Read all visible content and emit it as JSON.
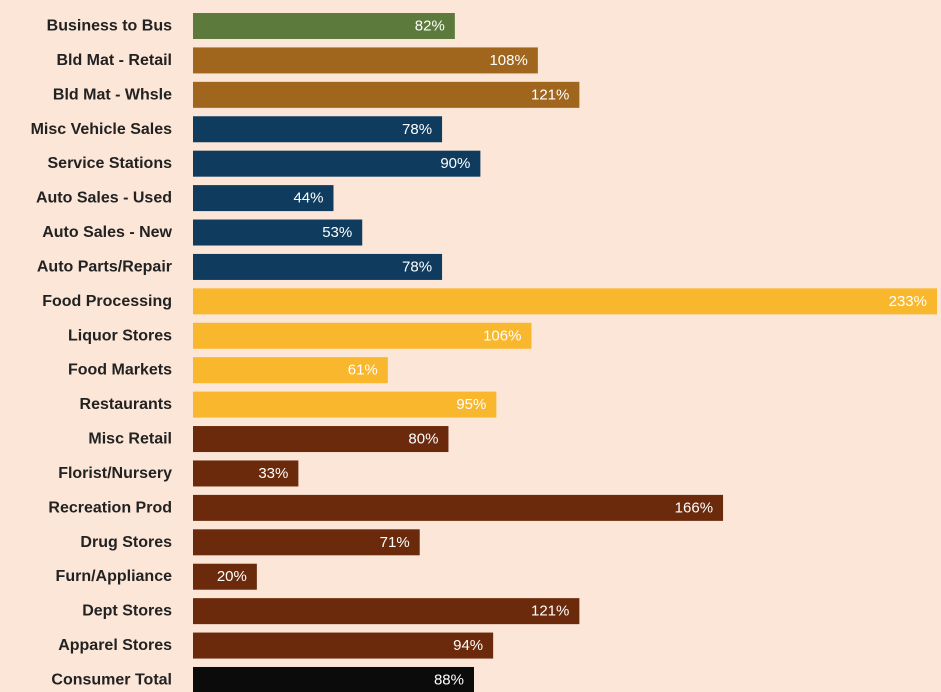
{
  "chart_data": {
    "type": "bar",
    "orientation": "horizontal",
    "title": "",
    "xlabel": "",
    "ylabel": "",
    "xlim": [
      0,
      233
    ],
    "grid": false,
    "legend": "none",
    "categories": [
      "Business to Bus",
      "Bld Mat - Retail",
      "Bld Mat - Whsle",
      "Misc Vehicle Sales",
      "Service Stations",
      "Auto Sales - Used",
      "Auto Sales - New",
      "Auto Parts/Repair",
      "Food Processing",
      "Liquor Stores",
      "Food Markets",
      "Restaurants",
      "Misc Retail",
      "Florist/Nursery",
      "Recreation Prod",
      "Drug Stores",
      "Furn/Appliance",
      "Dept Stores",
      "Apparel Stores",
      "Consumer Total"
    ],
    "values": [
      82,
      108,
      121,
      78,
      90,
      44,
      53,
      78,
      233,
      106,
      61,
      95,
      80,
      33,
      166,
      71,
      20,
      121,
      94,
      88
    ],
    "value_labels": [
      "82%",
      "108%",
      "121%",
      "78%",
      "90%",
      "44%",
      "53%",
      "78%",
      "233%",
      "106%",
      "61%",
      "95%",
      "80%",
      "33%",
      "166%",
      "71%",
      "20%",
      "121%",
      "94%",
      "88%"
    ],
    "bar_colors": [
      "#5b7a3b",
      "#a0661d",
      "#a0661d",
      "#0f3c5e",
      "#0f3c5e",
      "#0f3c5e",
      "#0f3c5e",
      "#0f3c5e",
      "#f9b72d",
      "#f9b72d",
      "#f9b72d",
      "#f9b72d",
      "#6b2a0c",
      "#6b2a0c",
      "#6b2a0c",
      "#6b2a0c",
      "#6b2a0c",
      "#6b2a0c",
      "#6b2a0c",
      "#0b0b0b"
    ]
  },
  "colors": {
    "background": "#fbe6d8",
    "category_text": "#222222",
    "value_text": "#ffffff"
  }
}
